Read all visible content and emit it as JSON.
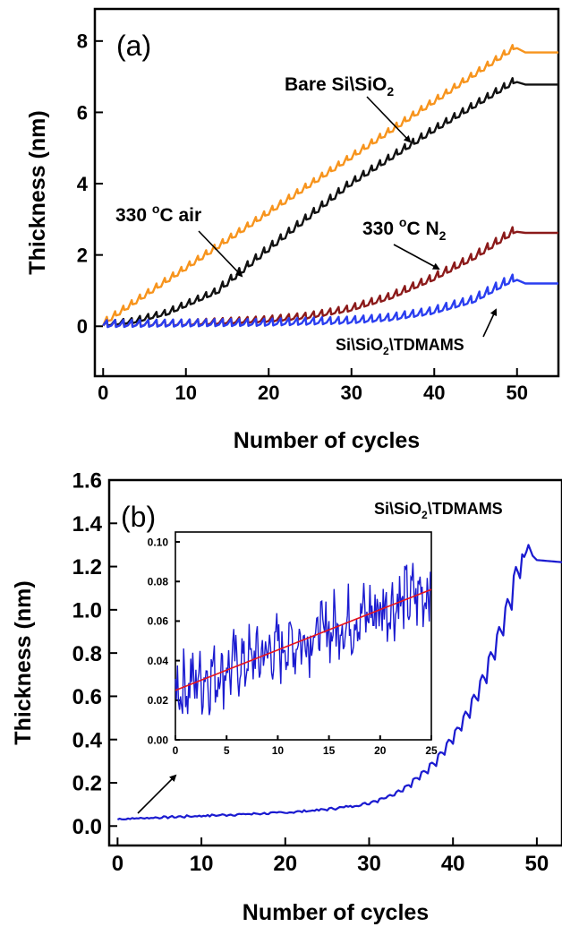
{
  "chart_data": [
    {
      "type": "line",
      "panel_label": "(a)",
      "xlabel": "Number of cycles",
      "ylabel": "Thickness (nm)",
      "xlim": [
        -1,
        55
      ],
      "ylim": [
        -1.4,
        8.9
      ],
      "xticks": [
        "0",
        "10",
        "20",
        "30",
        "40",
        "50"
      ],
      "yticks": [
        "0",
        "2",
        "4",
        "6",
        "8"
      ],
      "legend": "none",
      "grid": false,
      "series": [
        {
          "color": "#f7941d",
          "style": "sawtooth",
          "x": [
            0,
            50,
            50.5,
            55
          ],
          "y": [
            0.02,
            7.8,
            7.68,
            7.68
          ]
        },
        {
          "color": "#111111",
          "style": "sawtooth",
          "x": [
            0,
            4,
            8,
            14,
            20,
            30,
            40,
            50,
            50.5,
            55
          ],
          "y": [
            0.02,
            0.12,
            0.35,
            0.95,
            2.1,
            3.95,
            5.45,
            6.85,
            6.78,
            6.78
          ]
        },
        {
          "color": "#8b1a1a",
          "style": "sawtooth",
          "x": [
            0,
            10,
            20,
            25,
            30,
            35,
            40,
            45,
            50,
            50.5,
            55
          ],
          "y": [
            0.02,
            0.05,
            0.15,
            0.25,
            0.45,
            0.8,
            1.3,
            1.9,
            2.65,
            2.62,
            2.62
          ]
        },
        {
          "color": "#2a3ef0",
          "style": "sawtooth",
          "x": [
            0,
            10,
            20,
            30,
            35,
            40,
            45,
            49,
            50,
            50.5,
            55
          ],
          "y": [
            0.02,
            0.04,
            0.06,
            0.12,
            0.2,
            0.38,
            0.7,
            1.2,
            1.3,
            1.2,
            1.2
          ]
        }
      ],
      "annotations": [
        {
          "text": "Bare Si\\SiO",
          "sub": "2",
          "sup": "",
          "suffix": ""
        },
        {
          "text": "330 ",
          "sup": "o",
          "suffix": "C air",
          "sub": ""
        },
        {
          "text": "330 ",
          "sup": "o",
          "suffix": "C N",
          "sub": "2"
        },
        {
          "text": "Si\\SiO",
          "sub": "2",
          "suffix": "\\TDMAMS",
          "sup": ""
        }
      ]
    },
    {
      "type": "line",
      "panel_label": "(b)",
      "xlabel": "Number of cycles",
      "ylabel": "Thickness (nm)",
      "xlim": [
        -1,
        53
      ],
      "ylim": [
        -0.09,
        1.6
      ],
      "xticks": [
        "0",
        "10",
        "20",
        "30",
        "40",
        "50"
      ],
      "yticks": [
        "0.0",
        "0.2",
        "0.4",
        "0.6",
        "0.8",
        "1.0",
        "1.2",
        "1.4",
        "1.6"
      ],
      "legend": "none",
      "grid": false,
      "label": {
        "text": "Si\\SiO",
        "sub": "2",
        "suffix": "\\TDMAMS"
      },
      "series": [
        {
          "color": "#1a1ad0",
          "style": "sawtooth",
          "x": [
            0,
            10,
            20,
            25,
            30,
            33,
            35,
            38,
            40,
            42,
            44,
            46,
            47,
            48,
            49,
            49.5,
            50,
            53
          ],
          "y": [
            0.03,
            0.045,
            0.06,
            0.075,
            0.1,
            0.14,
            0.18,
            0.28,
            0.38,
            0.5,
            0.66,
            0.88,
            1.0,
            1.15,
            1.3,
            1.25,
            1.23,
            1.22
          ]
        }
      ],
      "inset": {
        "type": "line",
        "xlim": [
          0,
          25
        ],
        "ylim": [
          0,
          0.105
        ],
        "xticks": [
          "0",
          "5",
          "10",
          "15",
          "20",
          "25"
        ],
        "yticks": [
          "0.00",
          "0.02",
          "0.04",
          "0.06",
          "0.08",
          "0.10"
        ],
        "series": [
          {
            "color": "#1a1ad0",
            "style": "noisy",
            "x": [
              0,
              5,
              10,
              15,
              20,
              25
            ],
            "y": [
              0.026,
              0.036,
              0.046,
              0.056,
              0.066,
              0.076
            ]
          }
        ],
        "fit": {
          "color": "#e8141c",
          "x": [
            0,
            25
          ],
          "y": [
            0.025,
            0.076
          ]
        }
      }
    }
  ]
}
